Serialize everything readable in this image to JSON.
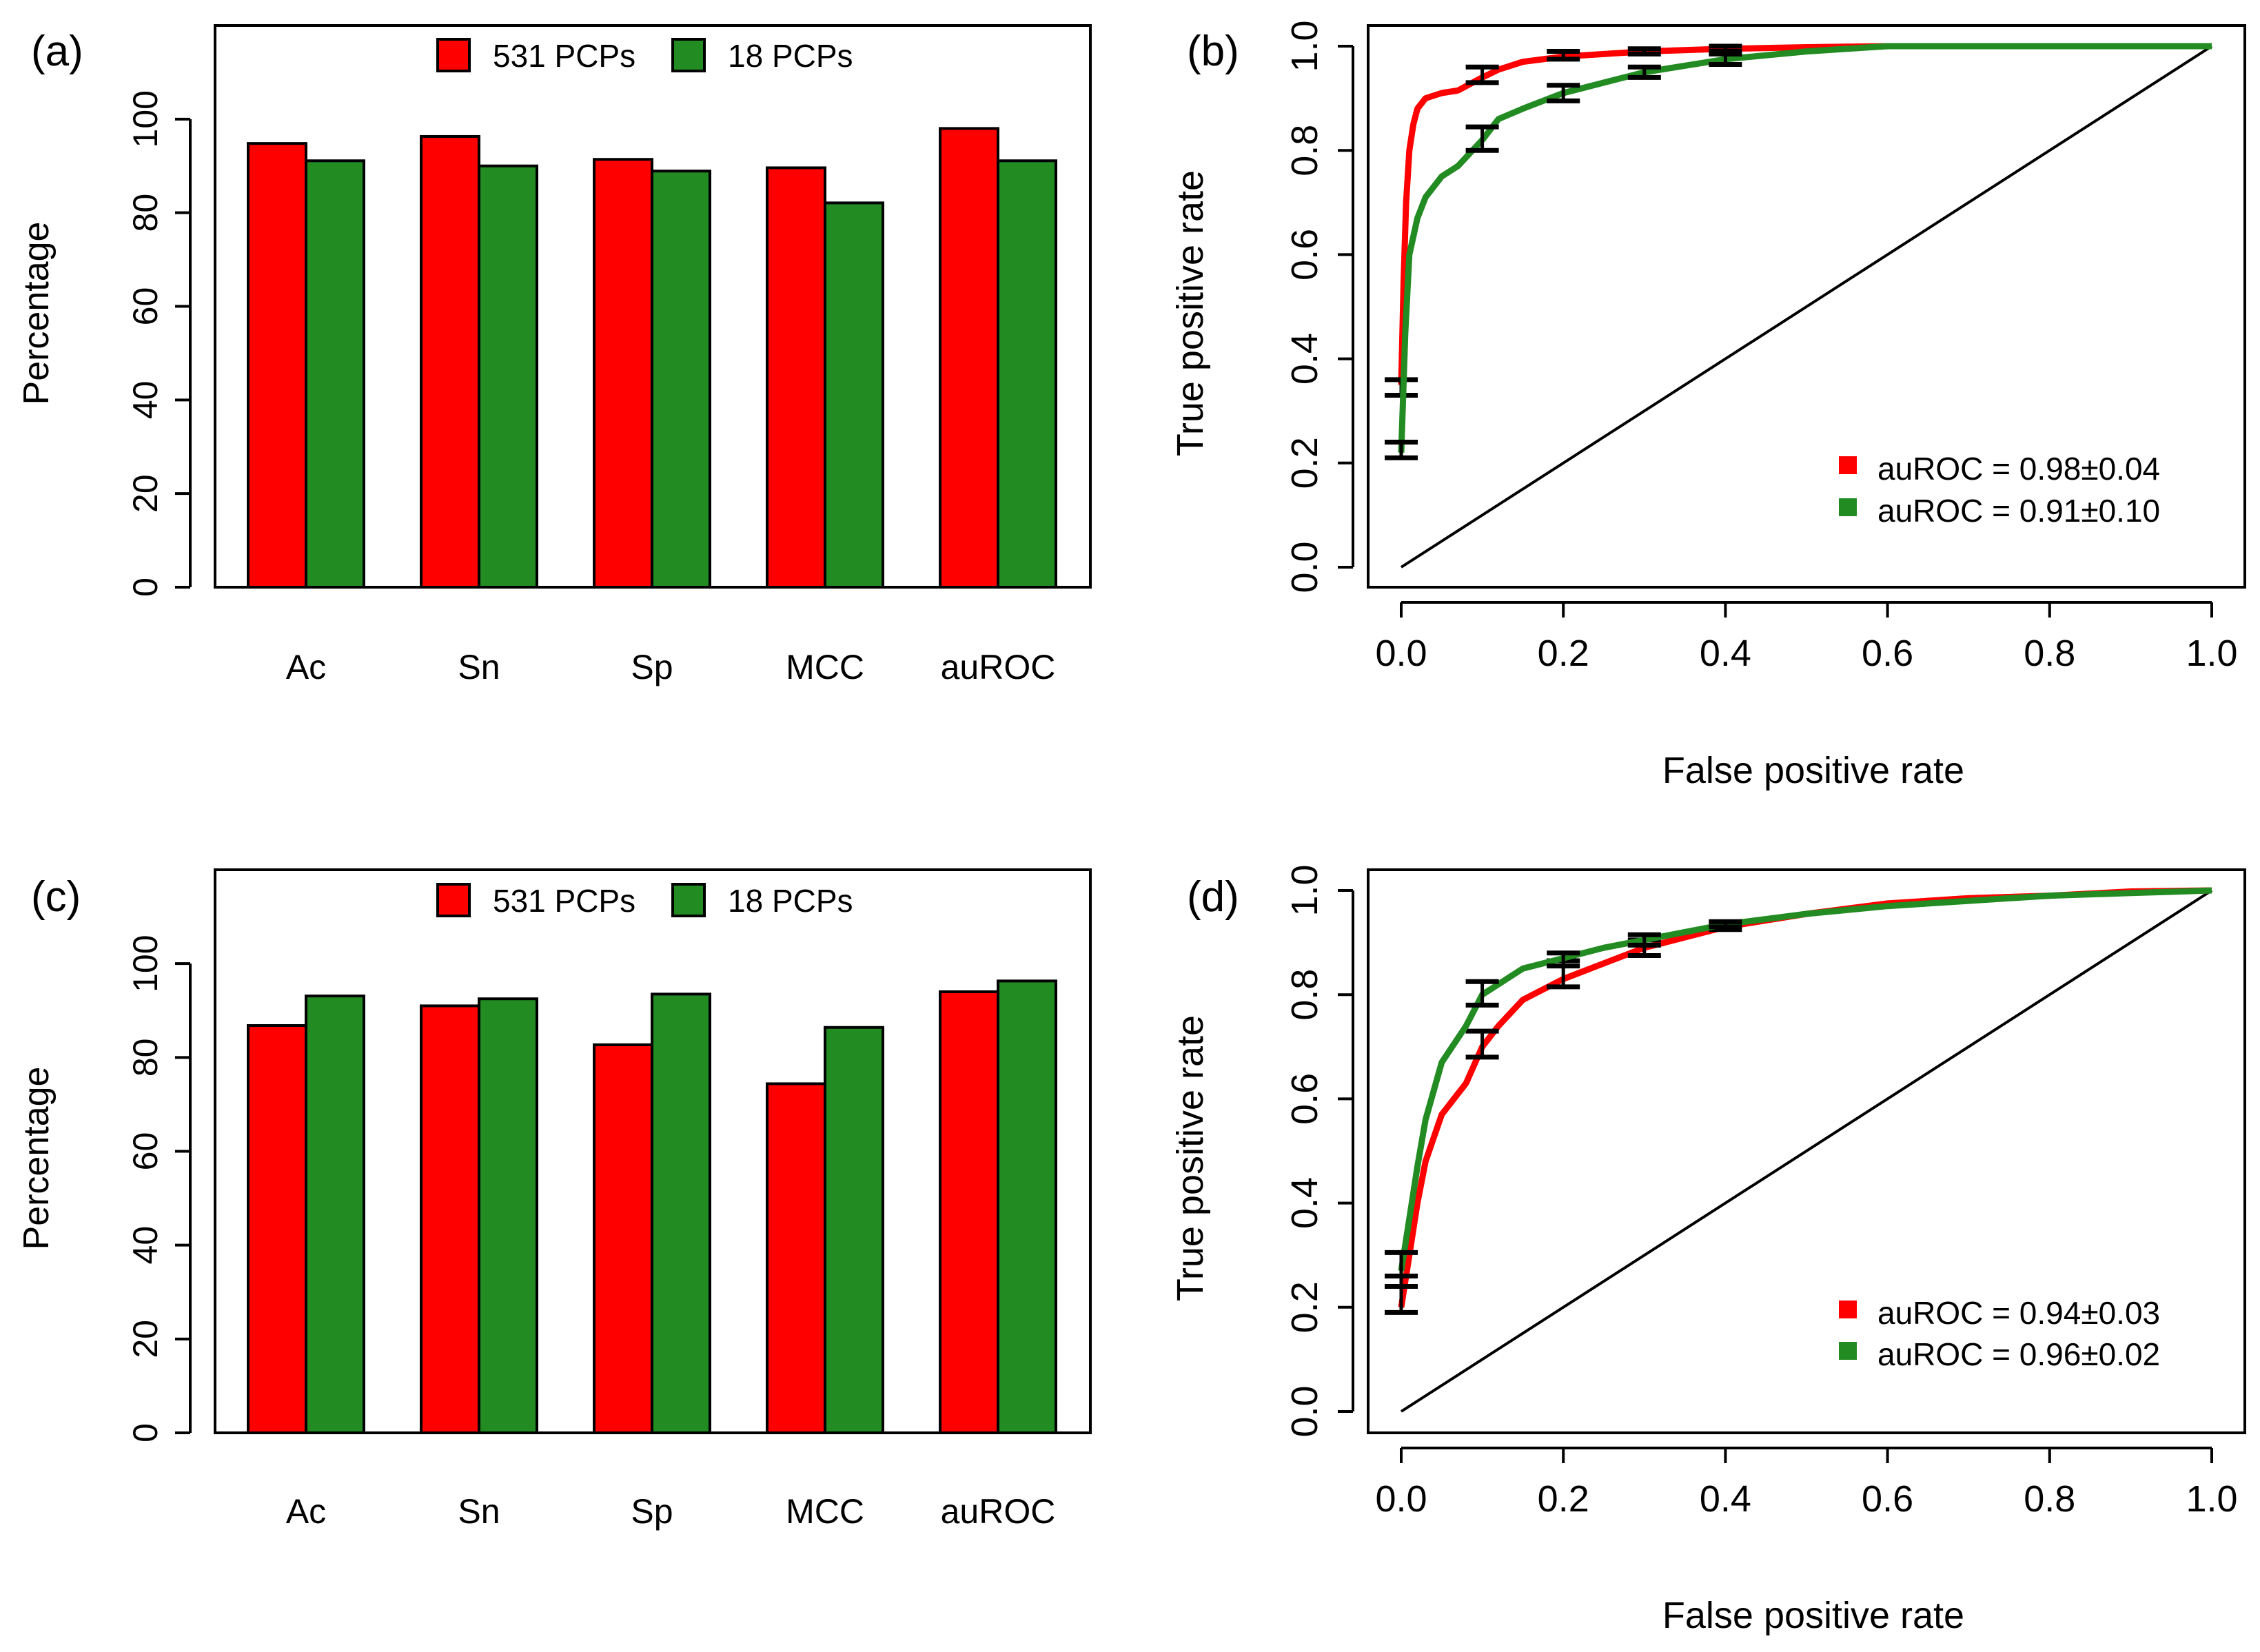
{
  "colors": {
    "series1": "#ff0000",
    "series2": "#228b22",
    "axis": "#000000"
  },
  "chart_data": [
    {
      "panel_label": "(a)",
      "type": "bar",
      "ylabel": "Percentage",
      "ylim": [
        0,
        120
      ],
      "yticks": [
        0,
        20,
        40,
        60,
        80,
        100
      ],
      "ytick_labels": [
        "0",
        "20",
        "40",
        "60",
        "80",
        "100"
      ],
      "categories": [
        "Ac",
        "Sn",
        "Sp",
        "MCC",
        "auROC"
      ],
      "series": [
        {
          "name": "531 PCPs",
          "values": [
            94.8,
            96.3,
            91.4,
            89.6,
            98.0
          ]
        },
        {
          "name": "18 PCPs",
          "values": [
            91.1,
            90.0,
            88.9,
            82.1,
            91.1
          ]
        }
      ],
      "legend": "top-center"
    },
    {
      "panel_label": "(b)",
      "type": "line",
      "xlabel": "False positive rate",
      "ylabel": "True positive rate",
      "xlim": [
        0,
        1
      ],
      "ylim": [
        0,
        1
      ],
      "xticks": [
        0,
        0.2,
        0.4,
        0.6,
        0.8,
        1.0
      ],
      "xtick_labels": [
        "0.0",
        "0.2",
        "0.4",
        "0.6",
        "0.8",
        "1.0"
      ],
      "yticks": [
        0,
        0.2,
        0.4,
        0.6,
        0.8,
        1.0
      ],
      "ytick_labels": [
        "0.0",
        "0.2",
        "0.4",
        "0.6",
        "0.8",
        "1.0"
      ],
      "diagonal": true,
      "series": [
        {
          "name": "auROC = 0.98±0.04",
          "x": [
            0,
            0.003,
            0.006,
            0.01,
            0.015,
            0.02,
            0.03,
            0.05,
            0.07,
            0.1,
            0.12,
            0.15,
            0.2,
            0.3,
            0.4,
            0.5,
            0.6,
            0.7,
            0.8,
            0.9,
            1.0
          ],
          "y": [
            0.35,
            0.55,
            0.7,
            0.8,
            0.85,
            0.88,
            0.9,
            0.91,
            0.915,
            0.94,
            0.955,
            0.97,
            0.98,
            0.99,
            0.995,
            0.998,
            1.0,
            1.0,
            1.0,
            1.0,
            1.0
          ],
          "error_bars": [
            {
              "x": 0,
              "low": 0.33,
              "high": 0.36
            },
            {
              "x": 0.1,
              "low": 0.93,
              "high": 0.96
            },
            {
              "x": 0.2,
              "low": 0.975,
              "high": 0.99
            },
            {
              "x": 0.3,
              "low": 0.985,
              "high": 0.995
            },
            {
              "x": 0.4,
              "low": 0.99,
              "high": 1.0
            }
          ]
        },
        {
          "name": "auROC = 0.91±0.10",
          "x": [
            0,
            0.005,
            0.01,
            0.02,
            0.03,
            0.05,
            0.07,
            0.1,
            0.12,
            0.15,
            0.2,
            0.25,
            0.3,
            0.4,
            0.5,
            0.6,
            0.7,
            0.8,
            0.9,
            1.0
          ],
          "y": [
            0.22,
            0.45,
            0.6,
            0.67,
            0.71,
            0.75,
            0.77,
            0.82,
            0.86,
            0.88,
            0.91,
            0.93,
            0.95,
            0.975,
            0.99,
            1.0,
            1.0,
            1.0,
            1.0,
            1.0
          ],
          "error_bars": [
            {
              "x": 0,
              "low": 0.21,
              "high": 0.24
            },
            {
              "x": 0.1,
              "low": 0.8,
              "high": 0.845
            },
            {
              "x": 0.2,
              "low": 0.895,
              "high": 0.925
            },
            {
              "x": 0.3,
              "low": 0.94,
              "high": 0.96
            },
            {
              "x": 0.4,
              "low": 0.965,
              "high": 0.985
            }
          ]
        }
      ],
      "legend": "bottom-right"
    },
    {
      "panel_label": "(c)",
      "type": "bar",
      "ylabel": "Percentage",
      "ylim": [
        0,
        120
      ],
      "yticks": [
        0,
        20,
        40,
        60,
        80,
        100
      ],
      "ytick_labels": [
        "0",
        "20",
        "40",
        "60",
        "80",
        "100"
      ],
      "categories": [
        "Ac",
        "Sn",
        "Sp",
        "MCC",
        "auROC"
      ],
      "series": [
        {
          "name": "531 PCPs",
          "values": [
            86.8,
            91.0,
            82.7,
            74.4,
            94.0
          ]
        },
        {
          "name": "18 PCPs",
          "values": [
            93.1,
            92.5,
            93.5,
            86.4,
            96.3
          ]
        }
      ],
      "legend": "top-center"
    },
    {
      "panel_label": "(d)",
      "type": "line",
      "xlabel": "False positive rate",
      "ylabel": "True positive rate",
      "xlim": [
        0,
        1
      ],
      "ylim": [
        0,
        1
      ],
      "xticks": [
        0,
        0.2,
        0.4,
        0.6,
        0.8,
        1.0
      ],
      "xtick_labels": [
        "0.0",
        "0.2",
        "0.4",
        "0.6",
        "0.8",
        "1.0"
      ],
      "yticks": [
        0,
        0.2,
        0.4,
        0.6,
        0.8,
        1.0
      ],
      "ytick_labels": [
        "0.0",
        "0.2",
        "0.4",
        "0.6",
        "0.8",
        "1.0"
      ],
      "diagonal": true,
      "series": [
        {
          "name": "auROC = 0.94±0.03",
          "x": [
            0,
            0.01,
            0.02,
            0.03,
            0.05,
            0.08,
            0.1,
            0.12,
            0.15,
            0.2,
            0.25,
            0.3,
            0.4,
            0.5,
            0.6,
            0.7,
            0.8,
            0.9,
            1.0
          ],
          "y": [
            0.2,
            0.3,
            0.4,
            0.48,
            0.57,
            0.63,
            0.7,
            0.74,
            0.79,
            0.83,
            0.86,
            0.89,
            0.93,
            0.955,
            0.975,
            0.985,
            0.99,
            0.998,
            1.0
          ],
          "error_bars": [
            {
              "x": 0,
              "low": 0.19,
              "high": 0.26
            },
            {
              "x": 0.1,
              "low": 0.68,
              "high": 0.73
            },
            {
              "x": 0.2,
              "low": 0.815,
              "high": 0.865
            },
            {
              "x": 0.3,
              "low": 0.875,
              "high": 0.905
            },
            {
              "x": 0.4,
              "low": 0.925,
              "high": 0.94
            }
          ]
        },
        {
          "name": "auROC = 0.96±0.02",
          "x": [
            0,
            0.01,
            0.02,
            0.03,
            0.05,
            0.08,
            0.1,
            0.12,
            0.15,
            0.2,
            0.25,
            0.3,
            0.4,
            0.5,
            0.6,
            0.7,
            0.8,
            0.9,
            1.0
          ],
          "y": [
            0.27,
            0.37,
            0.47,
            0.56,
            0.67,
            0.74,
            0.8,
            0.82,
            0.85,
            0.87,
            0.89,
            0.905,
            0.935,
            0.955,
            0.97,
            0.98,
            0.99,
            0.995,
            1.0
          ],
          "error_bars": [
            {
              "x": 0,
              "low": 0.24,
              "high": 0.305
            },
            {
              "x": 0.1,
              "low": 0.78,
              "high": 0.825
            },
            {
              "x": 0.2,
              "low": 0.855,
              "high": 0.88
            },
            {
              "x": 0.3,
              "low": 0.895,
              "high": 0.915
            },
            {
              "x": 0.4,
              "low": 0.93,
              "high": 0.94
            }
          ]
        }
      ],
      "legend": "bottom-right"
    }
  ]
}
